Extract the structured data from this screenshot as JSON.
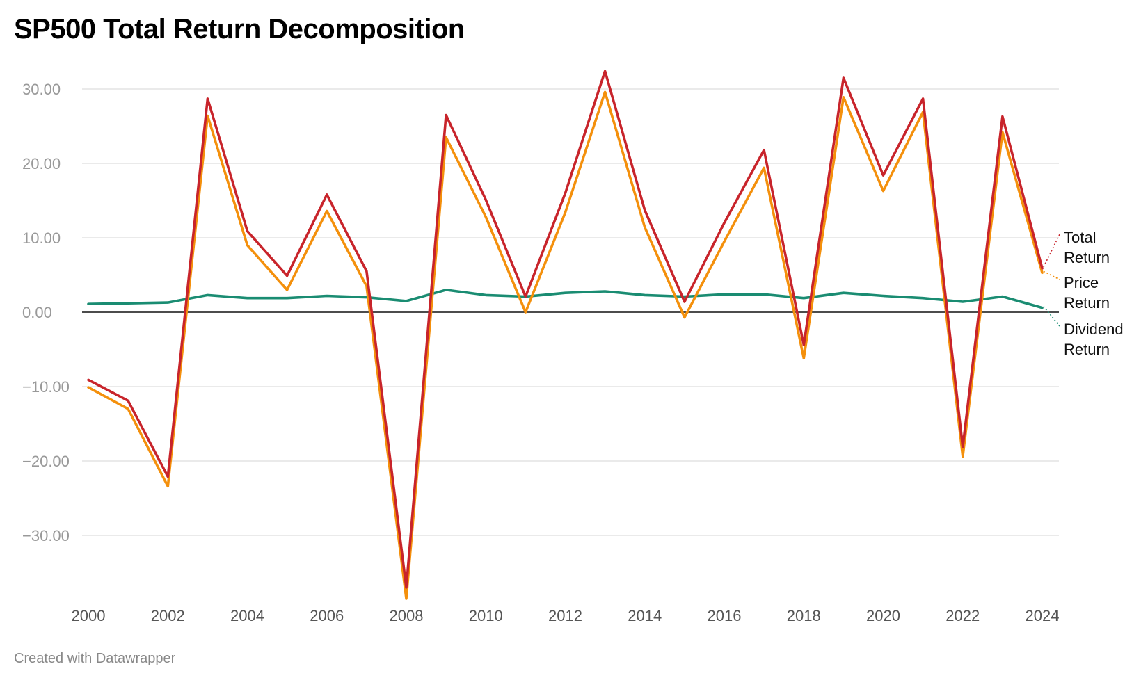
{
  "title": "SP500 Total Return Decomposition",
  "footer": "Created with Datawrapper",
  "chart_data": {
    "type": "line",
    "title": "SP500 Total Return Decomposition",
    "xlabel": "",
    "ylabel": "",
    "xlim": [
      2000,
      2024
    ],
    "ylim": [
      -38.5,
      32.5
    ],
    "x": [
      2000,
      2001,
      2002,
      2003,
      2004,
      2005,
      2006,
      2007,
      2008,
      2009,
      2010,
      2011,
      2012,
      2013,
      2014,
      2015,
      2016,
      2017,
      2018,
      2019,
      2020,
      2021,
      2022,
      2023,
      2024
    ],
    "x_ticks": [
      2000,
      2002,
      2004,
      2006,
      2008,
      2010,
      2012,
      2014,
      2016,
      2018,
      2020,
      2022,
      2024
    ],
    "y_ticks": [
      {
        "value": 30,
        "label": "30.00"
      },
      {
        "value": 20,
        "label": "20.00"
      },
      {
        "value": 10,
        "label": "10.00"
      },
      {
        "value": 0,
        "label": "0.00"
      },
      {
        "value": -10,
        "label": "−10.00"
      },
      {
        "value": -20,
        "label": "−20.00"
      },
      {
        "value": -30,
        "label": "−30.00"
      }
    ],
    "grid": true,
    "legend": "right",
    "series": [
      {
        "name": "Dividend Return",
        "label_lines": [
          "Dividend",
          "Return"
        ],
        "color": "#1a8c72",
        "values": [
          1.1,
          1.2,
          1.3,
          2.3,
          1.9,
          1.9,
          2.2,
          2.0,
          1.5,
          3.0,
          2.3,
          2.1,
          2.6,
          2.8,
          2.3,
          2.1,
          2.4,
          2.4,
          1.9,
          2.6,
          2.2,
          1.9,
          1.4,
          2.1,
          0.6
        ]
      },
      {
        "name": "Price Return",
        "label_lines": [
          "Price",
          "Return"
        ],
        "color": "#f4900c",
        "values": [
          -10.1,
          -13.0,
          -23.4,
          26.4,
          9.0,
          3.0,
          13.6,
          3.5,
          -38.5,
          23.5,
          12.8,
          0.0,
          13.4,
          29.6,
          11.4,
          -0.7,
          9.5,
          19.4,
          -6.2,
          28.9,
          16.3,
          26.9,
          -19.4,
          24.2,
          5.3
        ]
      },
      {
        "name": "Total Return",
        "label_lines": [
          "Total",
          "Return"
        ],
        "color": "#c8242b",
        "values": [
          -9.1,
          -11.9,
          -22.1,
          28.7,
          10.9,
          4.9,
          15.8,
          5.5,
          -37.0,
          26.5,
          15.1,
          2.1,
          16.0,
          32.4,
          13.7,
          1.4,
          12.0,
          21.8,
          -4.4,
          31.5,
          18.4,
          28.7,
          -18.1,
          26.3,
          5.9
        ]
      }
    ]
  }
}
